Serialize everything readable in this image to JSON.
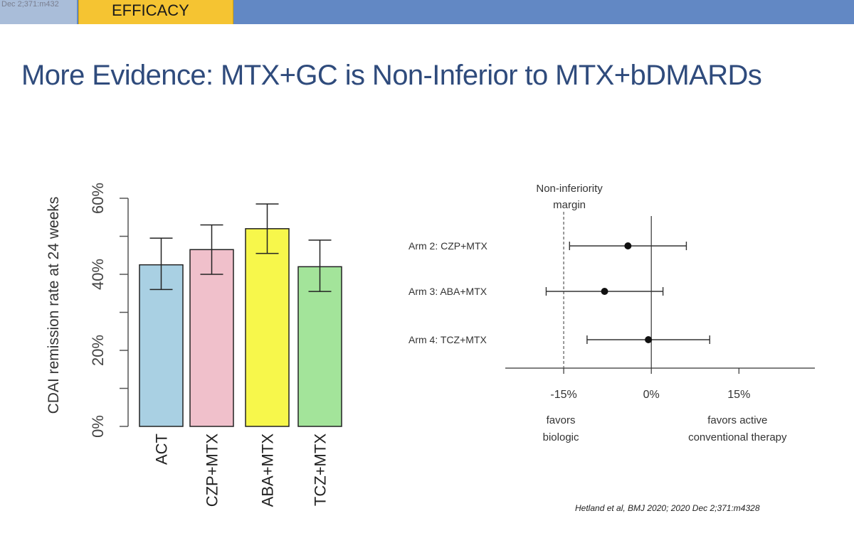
{
  "header": {
    "corner_text": "Dec 2;371:m432",
    "section_tab": "EFFICACY"
  },
  "slide": {
    "title": "More Evidence: MTX+GC is Non-Inferior to MTX+bDMARDs",
    "citation": "Hetland et al, BMJ 2020;  2020 Dec 2;371:m4328"
  },
  "chart_data": [
    {
      "type": "bar",
      "ylabel": "CDAI remission rate at 24 weeks",
      "ylim": [
        0,
        60
      ],
      "yticks": [
        "0%",
        "20%",
        "40%",
        "60%"
      ],
      "ytick_values": [
        0,
        20,
        40,
        60
      ],
      "minor_ticks": [
        10,
        30,
        50
      ],
      "categories": [
        "ACT",
        "CZP+MTX",
        "ABA+MTX",
        "TCZ+MTX"
      ],
      "values": [
        42.5,
        46.5,
        52,
        42
      ],
      "ci_low": [
        36,
        40,
        45.5,
        35.5
      ],
      "ci_high": [
        49.5,
        53,
        58.5,
        49
      ],
      "colors": [
        "#a9d0e3",
        "#f0c0cb",
        "#f7f74b",
        "#a3e49a"
      ],
      "grid": false
    },
    {
      "type": "forest",
      "annotation_margin": "Non-inferiority\nmargin",
      "xlim": [
        -25,
        28
      ],
      "xticks": [
        "-15%",
        "0%",
        "15%"
      ],
      "xtick_values": [
        -15,
        0,
        15
      ],
      "margin_value": -15,
      "categories": [
        "Arm 2: CZP+MTX",
        "Arm 3: ABA+MTX",
        "Arm 4: TCZ+MTX"
      ],
      "estimates": [
        -4,
        -8,
        -0.5
      ],
      "ci_low": [
        -14,
        -18,
        -11
      ],
      "ci_high": [
        6,
        2,
        10
      ],
      "label_left": "favors\nbiologic",
      "label_right": "favors active\nconventional therapy"
    }
  ]
}
